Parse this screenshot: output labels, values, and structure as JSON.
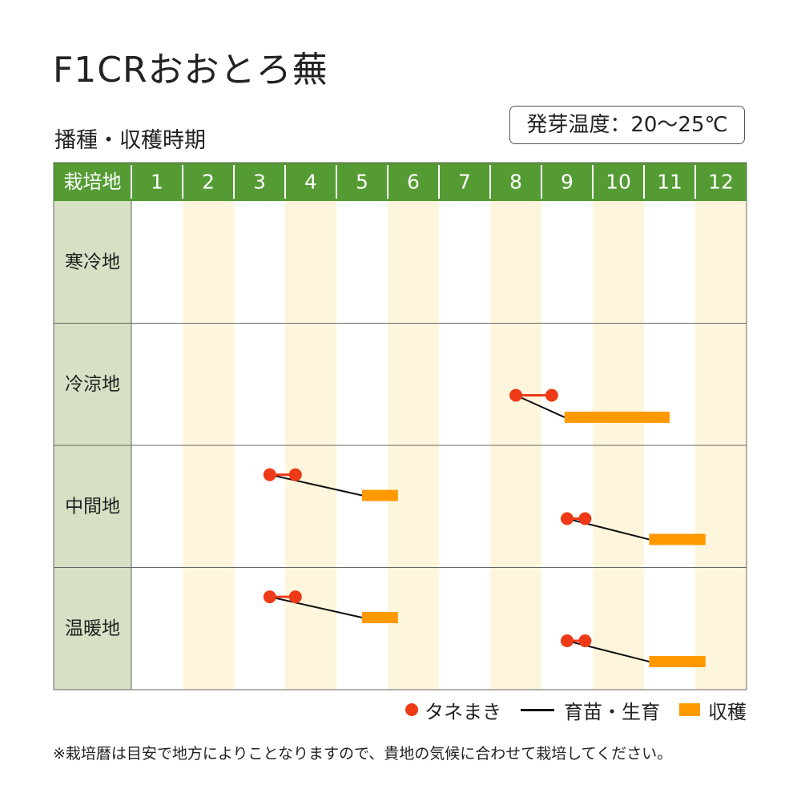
{
  "title": "F1CRおおとろ蕪",
  "subtitle": "播種・収穫時期",
  "germination_temp": "発芽温度：20〜25℃",
  "legend": {
    "sowing": "タネまき",
    "growing": "育苗・生育",
    "harvest": "収穫"
  },
  "footnote": "※栽培暦は目安で地方によりことなりますので、貴地の気候に合わせて栽培してください。",
  "colors": {
    "header_green": "#559b34",
    "region_cell": "#d6e0c4",
    "stripe": "#fdf6dc",
    "sowing": "#ee3a17",
    "growing": "#111111",
    "harvest": "#ff9900"
  },
  "chart_data": {
    "type": "gantt",
    "header_label": "栽培地",
    "months": [
      "1",
      "2",
      "3",
      "4",
      "5",
      "6",
      "7",
      "8",
      "9",
      "10",
      "11",
      "12"
    ],
    "regions": [
      {
        "name": "寒冷地",
        "schedules": []
      },
      {
        "name": "冷涼地",
        "schedules": [
          {
            "sow": [
              8.5,
              9.2
            ],
            "grow": [
              8.5,
              9.45
            ],
            "harvest": [
              9.45,
              11.5
            ]
          }
        ]
      },
      {
        "name": "中間地",
        "schedules": [
          {
            "sow": [
              3.7,
              4.2
            ],
            "grow": [
              3.7,
              5.5
            ],
            "harvest": [
              5.5,
              6.2
            ]
          },
          {
            "sow": [
              9.5,
              9.85
            ],
            "grow": [
              9.5,
              11.1
            ],
            "harvest": [
              11.1,
              12.2
            ]
          }
        ]
      },
      {
        "name": "温暖地",
        "schedules": [
          {
            "sow": [
              3.7,
              4.2
            ],
            "grow": [
              3.7,
              5.5
            ],
            "harvest": [
              5.5,
              6.2
            ]
          },
          {
            "sow": [
              9.5,
              9.85
            ],
            "grow": [
              9.5,
              11.1
            ],
            "harvest": [
              11.1,
              12.2
            ]
          }
        ]
      }
    ]
  }
}
